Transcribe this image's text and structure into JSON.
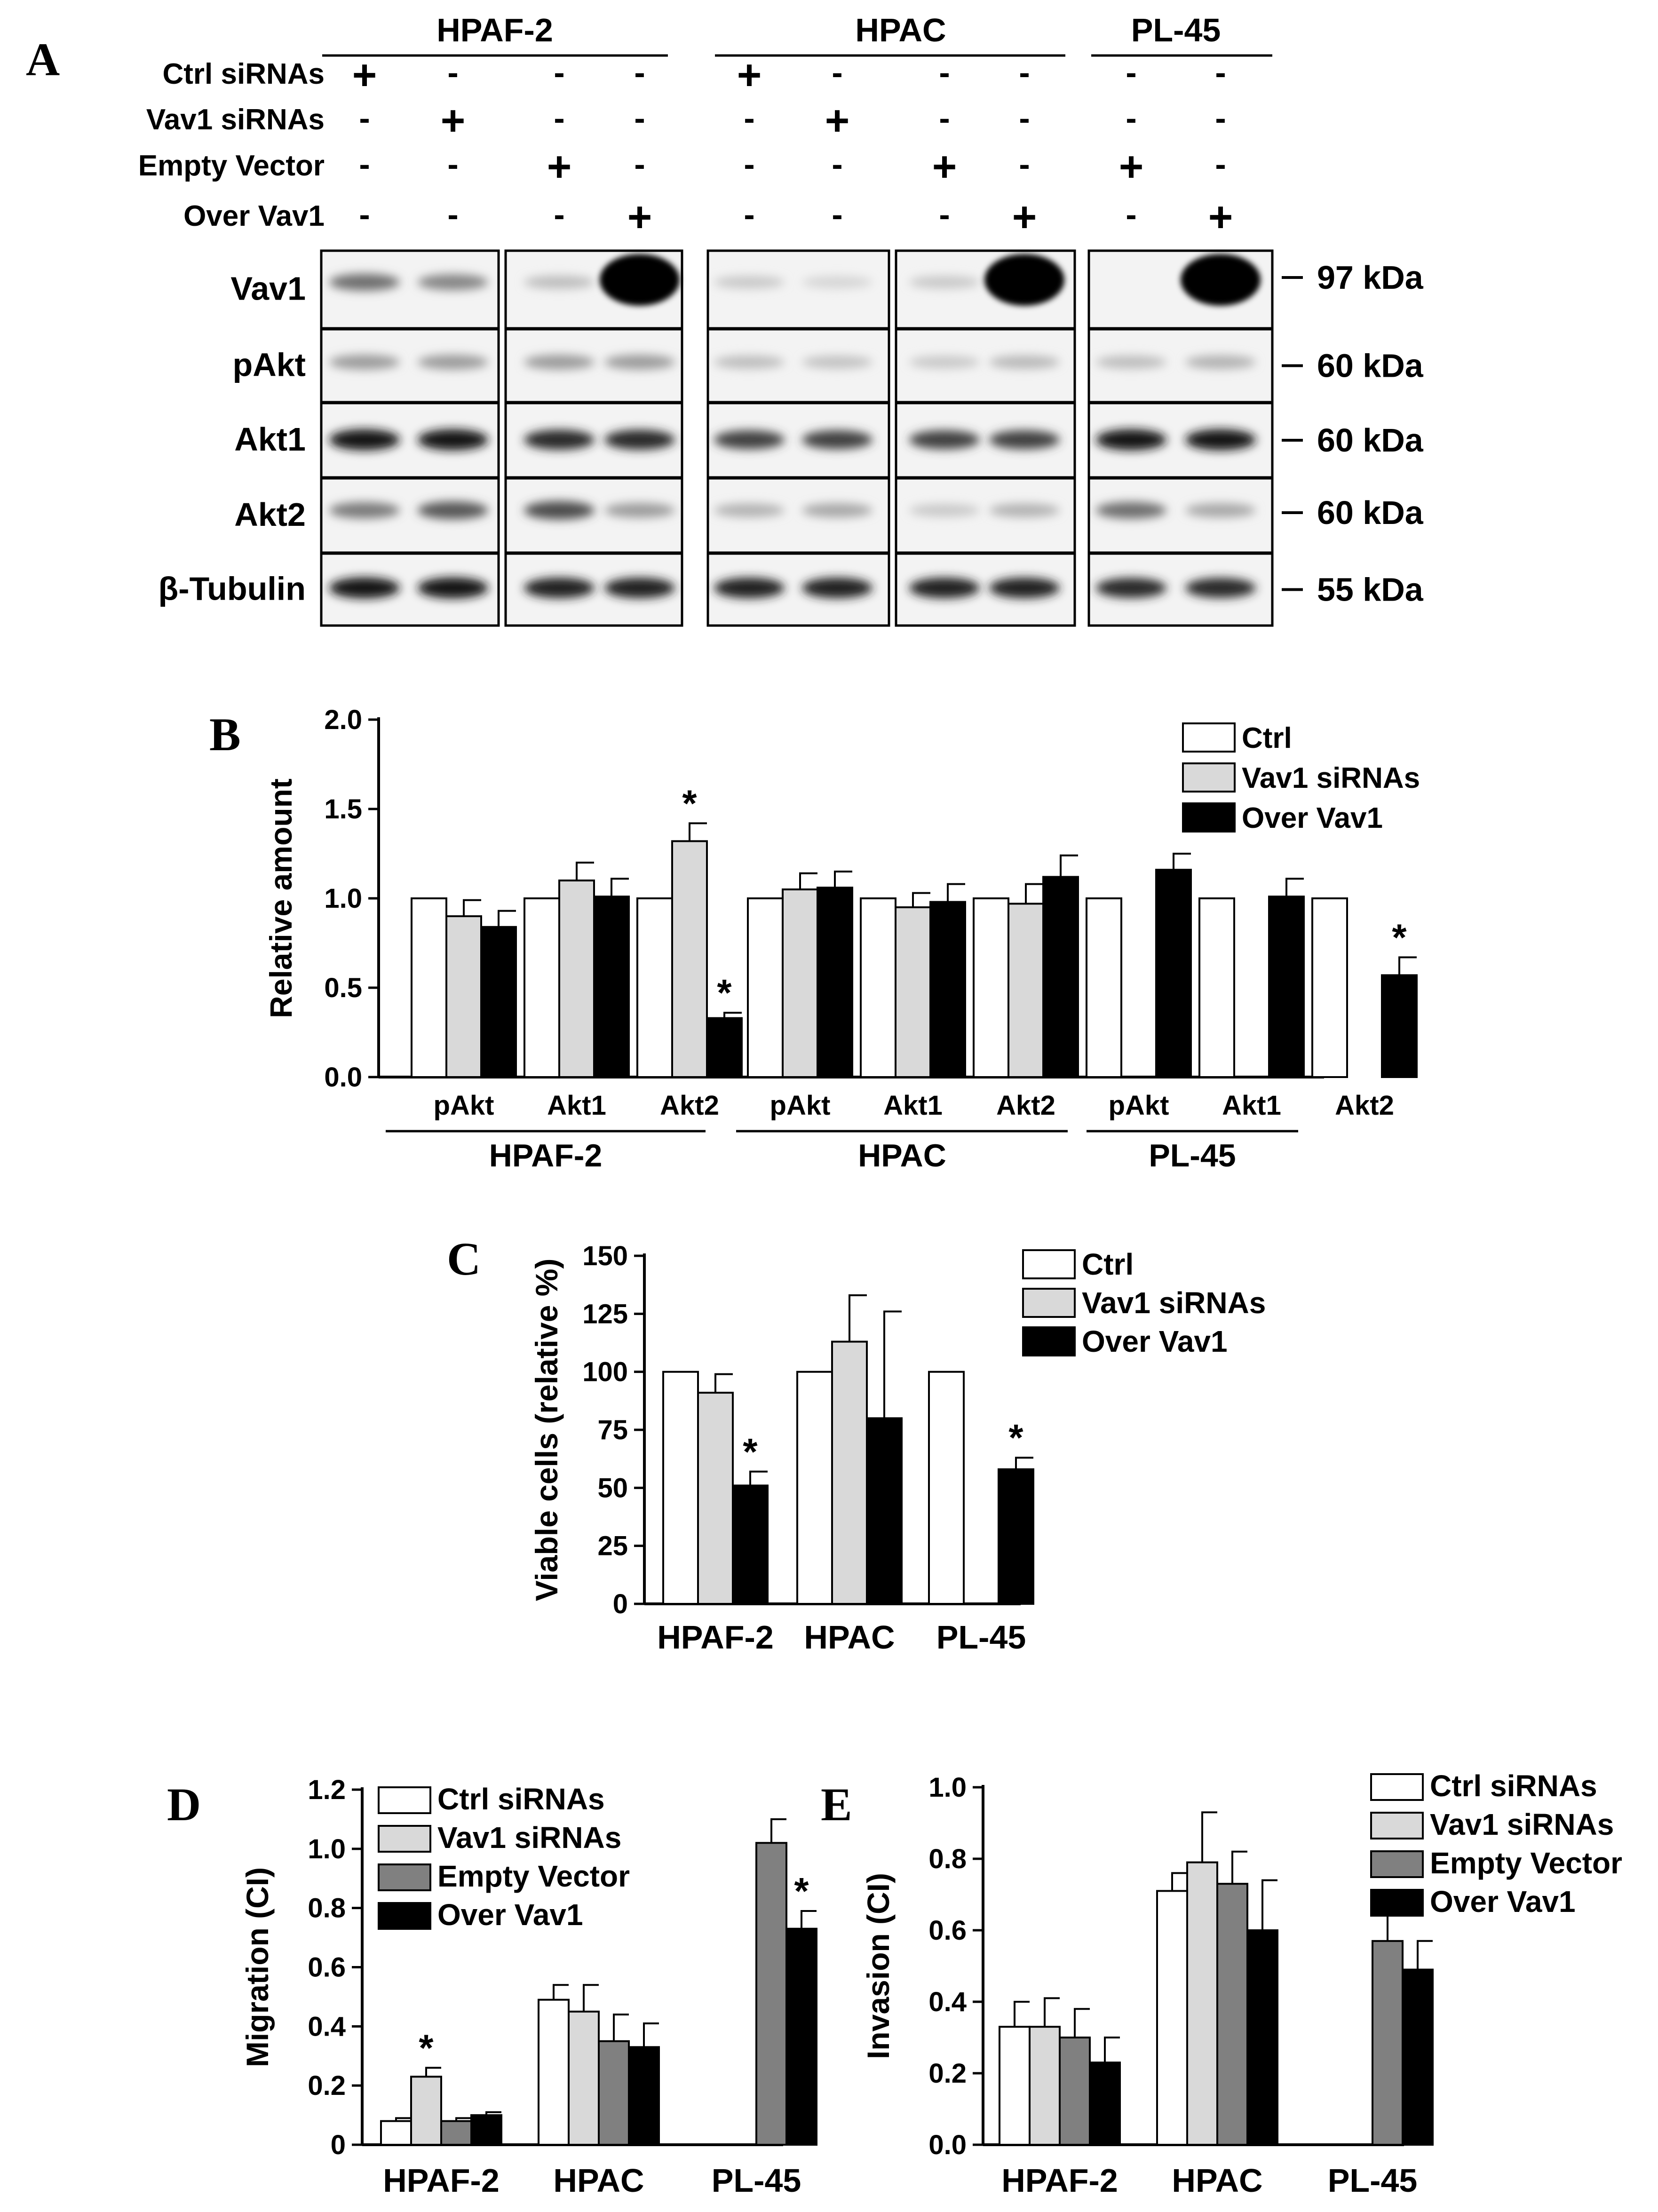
{
  "panel_a": {
    "letter": "A",
    "groups": [
      "HPAF-2",
      "HPAC",
      "PL-45"
    ],
    "conditions": [
      {
        "label": "Ctrl siRNAs",
        "signs": [
          "+",
          "-",
          "-",
          "-",
          "+",
          "-",
          "-",
          "-",
          "-",
          "-"
        ]
      },
      {
        "label": "Vav1 siRNAs",
        "signs": [
          "-",
          "+",
          "-",
          "-",
          "-",
          "+",
          "-",
          "-",
          "-",
          "-"
        ]
      },
      {
        "label": "Empty Vector",
        "signs": [
          "-",
          "-",
          "+",
          "-",
          "-",
          "-",
          "+",
          "-",
          "+",
          "-"
        ]
      },
      {
        "label": "Over Vav1",
        "signs": [
          "-",
          "-",
          "-",
          "+",
          "-",
          "-",
          "-",
          "+",
          "-",
          "+"
        ]
      }
    ],
    "blot_rows": [
      {
        "label": "Vav1",
        "kda": "97 kDa"
      },
      {
        "label": "pAkt",
        "kda": "60 kDa"
      },
      {
        "label": "Akt1",
        "kda": "60 kDa"
      },
      {
        "label": "Akt2",
        "kda": "60 kDa"
      },
      {
        "label": "β-Tubulin",
        "kda": "55 kDa"
      }
    ],
    "dash": "–"
  },
  "chart_data": [
    {
      "panel": "B",
      "type": "bar",
      "ylabel": "Relative amount",
      "ylim": [
        0,
        2.0
      ],
      "yticks": [
        "0.0",
        "0.5",
        "1.0",
        "1.5",
        "2.0"
      ],
      "legend": [
        "Ctrl",
        "Vav1 siRNAs",
        "Over Vav1"
      ],
      "colors": [
        "#ffffff",
        "#d9d9d9",
        "#000000"
      ],
      "categories": [
        "pAkt",
        "Akt1",
        "Akt2",
        "pAkt",
        "Akt1",
        "Akt2",
        "pAkt",
        "Akt1",
        "Akt2"
      ],
      "groups": [
        "HPAF-2",
        "HPAC",
        "PL-45"
      ],
      "bars": [
        [
          {
            "v": 1.0
          },
          {
            "v": 0.9,
            "e": 0.09
          },
          {
            "v": 0.84,
            "e": 0.09
          }
        ],
        [
          {
            "v": 1.0
          },
          {
            "v": 1.1,
            "e": 0.1
          },
          {
            "v": 1.01,
            "e": 0.1
          }
        ],
        [
          {
            "v": 1.0
          },
          {
            "v": 1.32,
            "e": 0.1,
            "star": true
          },
          {
            "v": 0.33,
            "e": 0.03,
            "star": true
          }
        ],
        [
          {
            "v": 1.0
          },
          {
            "v": 1.05,
            "e": 0.09
          },
          {
            "v": 1.06,
            "e": 0.09
          }
        ],
        [
          {
            "v": 1.0
          },
          {
            "v": 0.95,
            "e": 0.08
          },
          {
            "v": 0.98,
            "e": 0.1
          }
        ],
        [
          {
            "v": 1.0
          },
          {
            "v": 0.97,
            "e": 0.11
          },
          {
            "v": 1.12,
            "e": 0.12
          }
        ],
        [
          {
            "v": 1.0
          },
          null,
          {
            "v": 1.16,
            "e": 0.09
          }
        ],
        [
          {
            "v": 1.0
          },
          null,
          {
            "v": 1.01,
            "e": 0.1
          }
        ],
        [
          {
            "v": 1.0
          },
          null,
          {
            "v": 0.57,
            "e": 0.1,
            "star": true
          }
        ]
      ],
      "star": "*"
    },
    {
      "panel": "C",
      "type": "bar",
      "ylabel": "Viable cells (relative %)",
      "ylim": [
        0,
        150
      ],
      "yticks": [
        "0",
        "25",
        "50",
        "75",
        "100",
        "125",
        "150"
      ],
      "legend": [
        "Ctrl",
        "Vav1 siRNAs",
        "Over Vav1"
      ],
      "colors": [
        "#ffffff",
        "#d9d9d9",
        "#000000"
      ],
      "categories": [
        "HPAF-2",
        "HPAC",
        "PL-45"
      ],
      "bars": [
        [
          {
            "v": 100
          },
          {
            "v": 91,
            "e": 8
          },
          {
            "v": 51,
            "e": 6,
            "star": true
          }
        ],
        [
          {
            "v": 100
          },
          {
            "v": 113,
            "e": 20
          },
          {
            "v": 80,
            "e": 46
          }
        ],
        [
          {
            "v": 100
          },
          null,
          {
            "v": 58,
            "e": 5,
            "star": true
          }
        ]
      ],
      "star": "*"
    },
    {
      "panel": "D",
      "type": "bar",
      "ylabel": "Migration (CI)",
      "ylim": [
        0,
        1.2
      ],
      "yticks": [
        "0",
        "0.2",
        "0.4",
        "0.6",
        "0.8",
        "1.0",
        "1.2"
      ],
      "legend": [
        "Ctrl siRNAs",
        "Vav1 siRNAs",
        "Empty Vector",
        "Over Vav1"
      ],
      "colors": [
        "#ffffff",
        "#d9d9d9",
        "#808080",
        "#000000"
      ],
      "categories": [
        "HPAF-2",
        "HPAC",
        "PL-45"
      ],
      "bars": [
        [
          {
            "v": 0.08,
            "e": 0.01
          },
          {
            "v": 0.23,
            "e": 0.03,
            "star": true
          },
          {
            "v": 0.08,
            "e": 0.01
          },
          {
            "v": 0.1,
            "e": 0.01
          }
        ],
        [
          {
            "v": 0.49,
            "e": 0.05
          },
          {
            "v": 0.45,
            "e": 0.09
          },
          {
            "v": 0.35,
            "e": 0.09
          },
          {
            "v": 0.33,
            "e": 0.08
          }
        ],
        [
          null,
          null,
          {
            "v": 1.02,
            "e": 0.08
          },
          {
            "v": 0.73,
            "e": 0.06,
            "star": true
          }
        ]
      ],
      "star": "*"
    },
    {
      "panel": "E",
      "type": "bar",
      "ylabel": "Invasion (CI)",
      "ylim": [
        0,
        1.0
      ],
      "yticks": [
        "0.0",
        "0.2",
        "0.4",
        "0.6",
        "0.8",
        "1.0"
      ],
      "legend": [
        "Ctrl siRNAs",
        "Vav1 siRNAs",
        "Empty Vector",
        "Over Vav1"
      ],
      "colors": [
        "#ffffff",
        "#d9d9d9",
        "#808080",
        "#000000"
      ],
      "categories": [
        "HPAF-2",
        "HPAC",
        "PL-45"
      ],
      "bars": [
        [
          {
            "v": 0.33,
            "e": 0.07
          },
          {
            "v": 0.33,
            "e": 0.08
          },
          {
            "v": 0.3,
            "e": 0.08
          },
          {
            "v": 0.23,
            "e": 0.07
          }
        ],
        [
          {
            "v": 0.71,
            "e": 0.05
          },
          {
            "v": 0.79,
            "e": 0.14
          },
          {
            "v": 0.73,
            "e": 0.09
          },
          {
            "v": 0.6,
            "e": 0.14
          }
        ],
        [
          null,
          null,
          {
            "v": 0.57,
            "e": 0.13
          },
          {
            "v": 0.49,
            "e": 0.08
          }
        ]
      ]
    }
  ]
}
